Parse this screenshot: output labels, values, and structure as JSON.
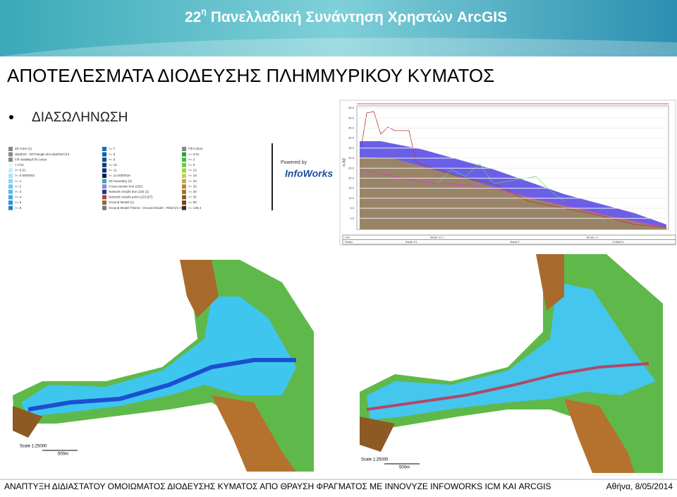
{
  "header": {
    "number": "22",
    "superscript": "η",
    "title": "Πανελλαδική Συνάντηση Χρηστών ArcGIS"
  },
  "slide": {
    "title": "ΑΠΟΤΕΛΕΣΜΑΤΑ ΔΙΟΔΕΥΣΗΣ ΠΛΗΜΜΥΡΙΚΟΥ ΚΥΜΑΤΟΣ",
    "bullet": "ΔΙΑΣΩΛΗΝΩΣΗ"
  },
  "legend": {
    "left": [
      "2D zone (1)",
      "depth2d : 2DTriangle.sim.depth2d (m)",
      "Fill Visibility/Fill Colour",
      "< 0.01",
      ">= 0.01",
      ">= 0.0000001",
      ">= 1",
      ">= 2",
      ">= 3",
      ">= 4",
      ">= 5",
      ">= 6"
    ],
    "middle": [
      ">= 7",
      ">= 8",
      ">= 9",
      ">= 10",
      ">= 11",
      ">= 11.0000019",
      "2D boundary (2)",
      "Cross section line (252)",
      "Network results line (1D) [1]",
      "Network results point (1D) [87]",
      "Ground Model (1)",
      "Ground Model Theme : Ground Model - Filled (m AD)"
    ],
    "right": [
      "Fill Colour",
      ">= 0.01",
      ">= 3",
      ">= 5",
      ">= 10",
      ">= 15",
      ">= 20",
      ">= 25",
      ">= 30",
      ">= 35",
      ">= 80",
      ">= 136.4"
    ]
  },
  "logo": {
    "powered": "Powered by",
    "name": "InfoWorks"
  },
  "profile": {
    "axis_label": "m AD",
    "y_labels": [
      "55.0",
      "50.0",
      "45.0",
      "40.0",
      "35.0",
      "30.0",
      "25.0",
      "20.0",
      "15.0",
      "10.0",
      "5.0",
      "0.0"
    ],
    "table": {
      "rows": [
        [
          "Link",
          "Break 1/1.1",
          "Break 1.1"
        ],
        [
          "Nodes",
          "Break 1/1",
          "Break 2",
          "Outfall 01"
        ]
      ]
    }
  },
  "maps": [
    {
      "scale": "Scale 1:25000",
      "distance": "500m"
    },
    {
      "scale": "Scale 1:25000",
      "distance": "500m"
    }
  ],
  "footer": {
    "left": "ΑΝΑΠΤΥΞΗ ΔΙΔΙΑΣΤΑΤΟΥ ΟΜΟΙΩΜΑΤΟΣ ΔΙΟΔΕΥΣΗΣ ΚΥΜΑΤΟΣ ΑΠΟ ΘΡΑΥΣΗ ΦΡΑΓΜΑΤΟΣ ΜΕ INNOVYZE INFOWORKS ICM ΚΑΙ ARCGIS",
    "right": "Αθήνα, 8/05/2014"
  }
}
